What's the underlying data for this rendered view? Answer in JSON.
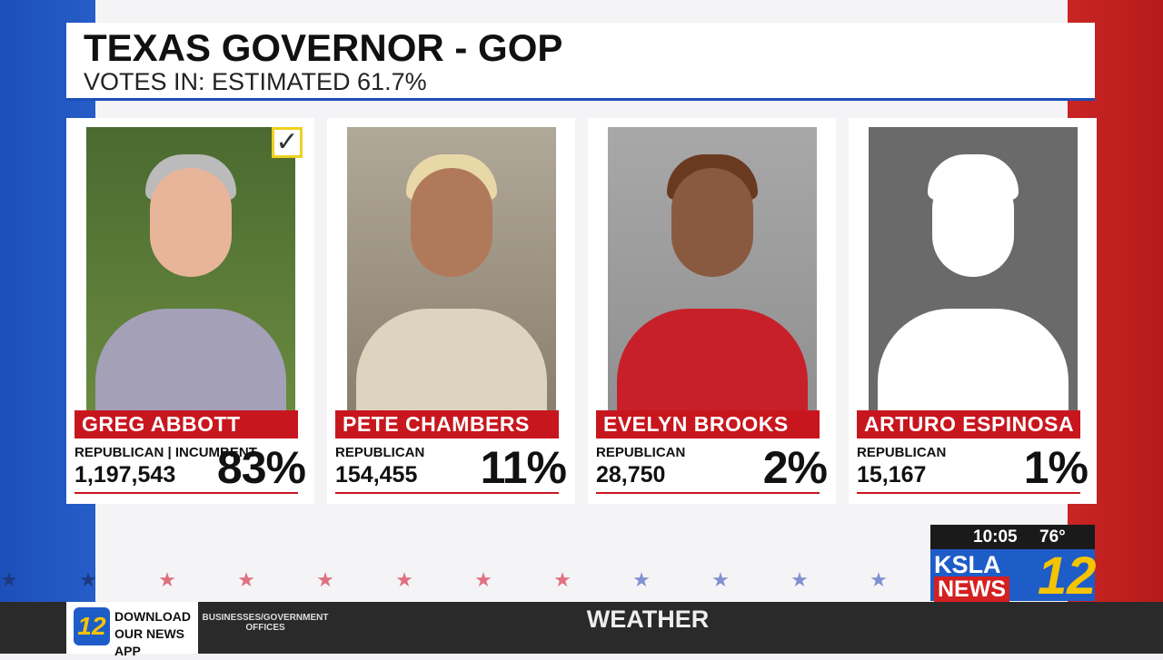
{
  "header": {
    "title": "TEXAS GOVERNOR - GOP",
    "subtitle": "VOTES IN: ESTIMATED 61.7%"
  },
  "candidates": [
    {
      "name": "GREG ABBOTT",
      "party": "REPUBLICAN | INCUMBENT",
      "votes": "1,197,543",
      "percent": "83%"
    },
    {
      "name": "PETE CHAMBERS",
      "party": "REPUBLICAN",
      "votes": "154,455",
      "percent": "11%"
    },
    {
      "name": "EVELYN BROOKS",
      "party": "REPUBLICAN",
      "votes": "28,750",
      "percent": "2%"
    },
    {
      "name": "ARTURO ESPINOSA",
      "party": "REPUBLICAN",
      "votes": "15,167",
      "percent": "1%"
    }
  ],
  "station": {
    "time": "10:05",
    "temperature": "76°",
    "logo_top": "KSLA",
    "logo_bottom": "NEWS",
    "channel": "12"
  },
  "ticker": {
    "app_badge": "12",
    "app": "DOWNLOAD OUR NEWS APP",
    "section": "BUSINESSES/GOVERNMENT OFFICES",
    "headline": "WEATHER"
  }
}
